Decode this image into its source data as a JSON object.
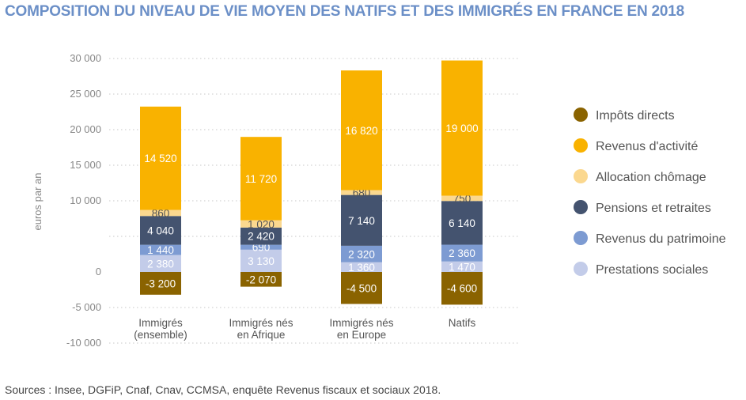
{
  "title": "COMPOSITION DU NIVEAU DE VIE MOYEN DES NATIFS ET DES IMMIGRÉS EN FRANCE EN 2018",
  "source": "Sources : Insee, DGFiP, Cnaf, Cnav, CCMSA, enquête Revenus fiscaux et sociaux 2018.",
  "chart_data": {
    "type": "bar",
    "stacked": true,
    "title": "COMPOSITION DU NIVEAU DE VIE MOYEN DES NATIFS ET DES IMMIGRÉS EN FRANCE EN 2018",
    "ylabel": "euros par an",
    "ylim": [
      -10000,
      30000
    ],
    "yticks": [
      -10000,
      -5000,
      0,
      10000,
      15000,
      20000,
      25000,
      30000
    ],
    "ytick_labels": [
      "-10 000",
      "-5 000",
      "0",
      "10 000",
      "15 000",
      "20 000",
      "25 000",
      "30 000"
    ],
    "grid": true,
    "legend_position": "right",
    "categories": [
      [
        "Immigrés",
        "(ensemble)"
      ],
      [
        "Immigrés nés",
        "en Afrique"
      ],
      [
        "Immigrés nés",
        "en Europe"
      ],
      [
        "Natifs"
      ]
    ],
    "series": [
      {
        "name": "Impôts directs",
        "color": "#8a6300",
        "text_color": "#ffffff",
        "values": [
          -3200,
          -2070,
          -4500,
          -4600
        ],
        "labels": [
          "-3 200",
          "-2 070",
          "-4 500",
          "-4 600"
        ]
      },
      {
        "name": "Prestations sociales",
        "color": "#c3cce9",
        "text_color": "#ffffff",
        "values": [
          2380,
          3130,
          1360,
          1470
        ],
        "labels": [
          "2 380",
          "3 130",
          "1 360",
          "1 470"
        ]
      },
      {
        "name": "Revenus du patrimoine",
        "color": "#7d9bd2",
        "text_color": "#ffffff",
        "values": [
          1440,
          690,
          2320,
          2360
        ],
        "labels": [
          "1 440",
          "690",
          "2 320",
          "2 360"
        ]
      },
      {
        "name": "Pensions et retraites",
        "color": "#44536f",
        "text_color": "#ffffff",
        "values": [
          4040,
          2420,
          7140,
          6140
        ],
        "labels": [
          "4 040",
          "2 420",
          "7 140",
          "6 140"
        ]
      },
      {
        "name": "Allocation chômage",
        "color": "#fbd88f",
        "text_color": "#555555",
        "values": [
          860,
          1020,
          680,
          750
        ],
        "labels": [
          "860",
          "1 020",
          "680",
          "750"
        ]
      },
      {
        "name": "Revenus d'activité",
        "color": "#f9b200",
        "text_color": "#ffffff",
        "values": [
          14520,
          11720,
          16820,
          19000
        ],
        "labels": [
          "14 520",
          "11 720",
          "16 820",
          "19 000"
        ]
      }
    ],
    "legend_order": [
      "Impôts directs",
      "Revenus d'activité",
      "Allocation chômage",
      "Pensions et retraites",
      "Revenus du patrimoine",
      "Prestations sociales"
    ]
  }
}
